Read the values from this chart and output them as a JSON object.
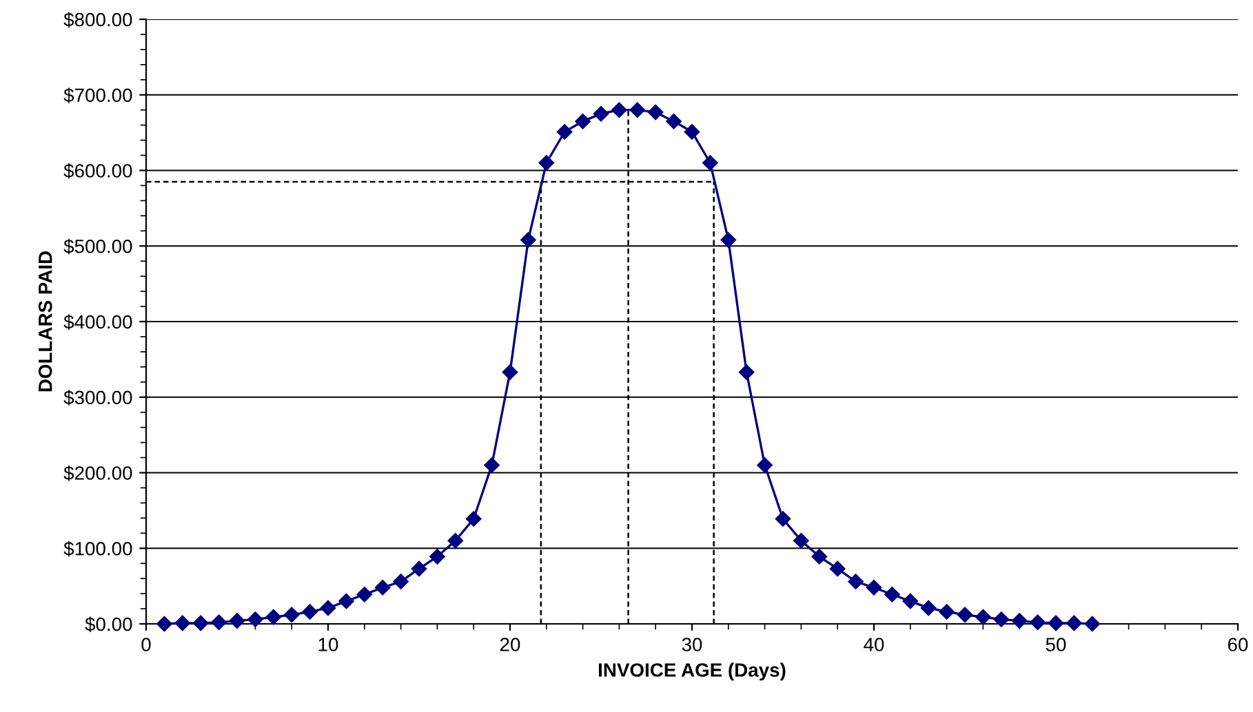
{
  "chart_data": {
    "type": "line",
    "xlabel": "INVOICE AGE (Days)",
    "ylabel": "DOLLARS PAID",
    "x": [
      1,
      2,
      3,
      4,
      5,
      6,
      7,
      8,
      9,
      10,
      11,
      12,
      13,
      14,
      15,
      16,
      17,
      18,
      19,
      20,
      21,
      22,
      23,
      24,
      25,
      26,
      27,
      28,
      29,
      30,
      31,
      32,
      33,
      34,
      35,
      36,
      37,
      38,
      39,
      40,
      41,
      42,
      43,
      44,
      45,
      46,
      47,
      48,
      49,
      50,
      51,
      52
    ],
    "series": [
      {
        "color": "#000080",
        "marker": "diamond",
        "line_style": "solid",
        "values": [
          0,
          1,
          1,
          2,
          4,
          6,
          9,
          12,
          16,
          21,
          30,
          39,
          48,
          56,
          73,
          89,
          110,
          139,
          210,
          333,
          508,
          610,
          651,
          665,
          675,
          680,
          680,
          677,
          665,
          651,
          610,
          508,
          333,
          210,
          139,
          110,
          89,
          73,
          56,
          48,
          39,
          30,
          21,
          16,
          12,
          9,
          6,
          4,
          2,
          1,
          1,
          0
        ]
      },
      {
        "type": "line",
        "color": "#000000",
        "marker": "none",
        "line_style": "dashed",
        "x": [
          0,
          31.2
        ],
        "values": [
          585,
          585
        ]
      },
      {
        "type": "line",
        "color": "#000000",
        "marker": "none",
        "line_style": "dashed",
        "x": [
          21.7,
          21.7
        ],
        "values": [
          0,
          585
        ]
      },
      {
        "type": "line",
        "color": "#000000",
        "marker": "none",
        "line_style": "dashed",
        "x": [
          26.5,
          26.5
        ],
        "values": [
          0,
          680
        ]
      },
      {
        "type": "line",
        "color": "#000000",
        "marker": "none",
        "line_style": "dashed",
        "x": [
          31.2,
          31.2
        ],
        "values": [
          0,
          585
        ]
      }
    ],
    "xlim": [
      0,
      60
    ],
    "xticks": [
      0,
      10,
      20,
      30,
      40,
      50,
      60
    ],
    "ylim": [
      0,
      800
    ],
    "yticks": [
      {
        "value": 0,
        "label": "$0.00"
      },
      {
        "value": 100,
        "label": "$100.00"
      },
      {
        "value": 200,
        "label": "$200.00"
      },
      {
        "value": 300,
        "label": "$300.00"
      },
      {
        "value": 400,
        "label": "$400.00"
      },
      {
        "value": 500,
        "label": "$500.00"
      },
      {
        "value": 600,
        "label": "$600.00"
      },
      {
        "value": 700,
        "label": "$700.00"
      },
      {
        "value": 800,
        "label": "$800.00"
      }
    ],
    "grid": "y",
    "legend": false
  }
}
